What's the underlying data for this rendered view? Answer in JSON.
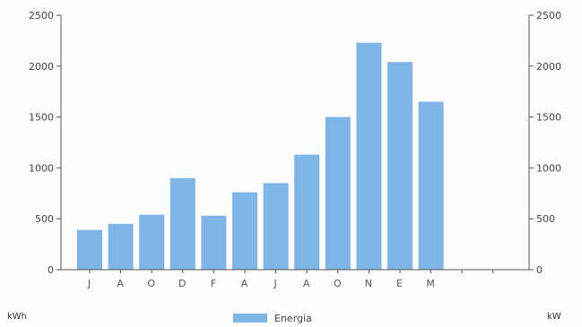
{
  "chart_data": {
    "type": "bar",
    "categories": [
      "J",
      "A",
      "O",
      "D",
      "F",
      "A",
      "J",
      "A",
      "O",
      "N",
      "E",
      "M"
    ],
    "series": [
      {
        "name": "Energia",
        "values": [
          390,
          450,
          540,
          900,
          530,
          760,
          850,
          1130,
          1500,
          2230,
          2040,
          1650
        ]
      }
    ],
    "y_left": {
      "unit": "kWh",
      "ylim": [
        0,
        2500
      ],
      "ticks": [
        0,
        500,
        1000,
        1500,
        2000,
        2500
      ]
    },
    "y_right": {
      "unit": "kW",
      "ylim": [
        0,
        2500
      ],
      "ticks": [
        0,
        500,
        1000,
        1500,
        2000,
        2500
      ]
    },
    "grid": false,
    "legend": "bottom-center",
    "bar_color": "#7fb4e8"
  }
}
